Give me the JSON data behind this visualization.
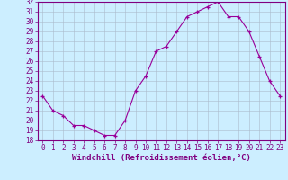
{
  "hours": [
    0,
    1,
    2,
    3,
    4,
    5,
    6,
    7,
    8,
    9,
    10,
    11,
    12,
    13,
    14,
    15,
    16,
    17,
    18,
    19,
    20,
    21,
    22,
    23
  ],
  "values": [
    22.5,
    21.0,
    20.5,
    19.5,
    19.5,
    19.0,
    18.5,
    18.5,
    20.0,
    23.0,
    24.5,
    27.0,
    27.5,
    29.0,
    30.5,
    31.0,
    31.5,
    32.0,
    30.5,
    30.5,
    29.0,
    26.5,
    24.0,
    22.5
  ],
  "line_color": "#990099",
  "marker": "+",
  "bg_color": "#cceeff",
  "grid_color": "#aabbcc",
  "xlabel": "Windchill (Refroidissement éolien,°C)",
  "ylim": [
    18,
    32
  ],
  "yticks": [
    18,
    19,
    20,
    21,
    22,
    23,
    24,
    25,
    26,
    27,
    28,
    29,
    30,
    31,
    32
  ],
  "xticks": [
    0,
    1,
    2,
    3,
    4,
    5,
    6,
    7,
    8,
    9,
    10,
    11,
    12,
    13,
    14,
    15,
    16,
    17,
    18,
    19,
    20,
    21,
    22,
    23
  ],
  "xlabel_fontsize": 6.5,
  "tick_fontsize": 5.5,
  "axis_label_color": "#800080",
  "tick_color": "#800080",
  "spine_color": "#800080"
}
